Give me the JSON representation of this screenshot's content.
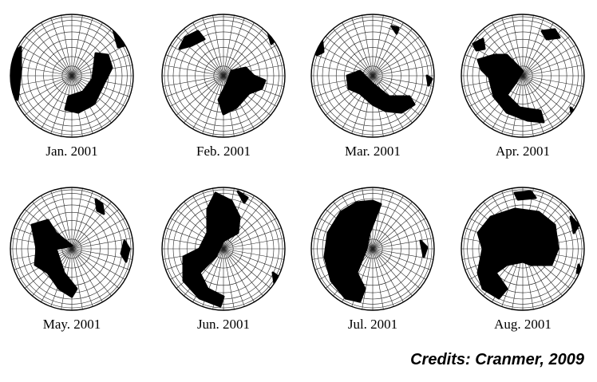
{
  "panels": [
    {
      "label": "Jan. 2001"
    },
    {
      "label": "Feb. 2001"
    },
    {
      "label": "Mar. 2001"
    },
    {
      "label": "Apr. 2001"
    },
    {
      "label": "May. 2001"
    },
    {
      "label": "Jun. 2001"
    },
    {
      "label": "Jul. 2001"
    },
    {
      "label": "Aug. 2001"
    }
  ],
  "credits": "Credits: Cranmer, 2009"
}
